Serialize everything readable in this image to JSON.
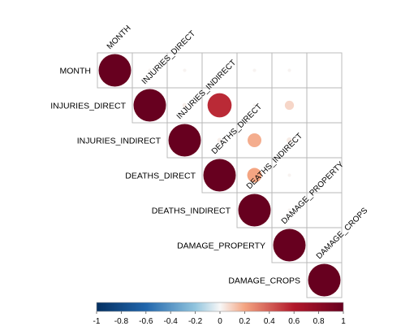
{
  "chart_data": {
    "type": "heatmap",
    "subtype": "correlation-upper-triangle",
    "variables": [
      "MONTH",
      "INJURIES_DIRECT",
      "INJURIES_INDIRECT",
      "DEATHS_DIRECT",
      "DEATHS_INDIRECT",
      "DAMAGE_PROPERTY",
      "DAMAGE_CROPS"
    ],
    "matrix": [
      [
        1.0,
        0.01,
        0.01,
        0.0,
        0.01,
        0.01,
        0.0
      ],
      [
        0.01,
        1.0,
        0.02,
        0.55,
        0.01,
        0.08,
        0.0
      ],
      [
        0.01,
        0.02,
        1.0,
        0.02,
        0.18,
        0.03,
        0.0
      ],
      [
        0.0,
        0.55,
        0.02,
        1.0,
        0.2,
        0.01,
        0.0
      ],
      [
        0.01,
        0.01,
        0.18,
        0.2,
        1.0,
        0.01,
        0.0
      ],
      [
        0.01,
        0.08,
        0.03,
        0.01,
        0.01,
        1.0,
        0.0
      ],
      [
        0.0,
        0.0,
        0.0,
        0.0,
        0.0,
        0.0,
        1.0
      ]
    ],
    "colorbar": {
      "range": [
        -1,
        1
      ],
      "ticks": [
        "-1",
        "-0.8",
        "-0.6",
        "-0.4",
        "-0.2",
        "0",
        "0.2",
        "0.4",
        "0.6",
        "0.8",
        "1"
      ],
      "tick_values": [
        -1,
        -0.8,
        -0.6,
        -0.4,
        -0.2,
        0,
        0.2,
        0.4,
        0.6,
        0.8,
        1
      ],
      "placement": "bottom"
    },
    "colors": {
      "negative_strong": "#053061",
      "negative_mid": "#2166ac",
      "negative_light": "#92c5de",
      "neutral": "#f7f7f7",
      "positive_light": "#f4a582",
      "positive_mid": "#b2182b",
      "positive_strong": "#67001f",
      "grid": "#b7b7b7"
    }
  }
}
